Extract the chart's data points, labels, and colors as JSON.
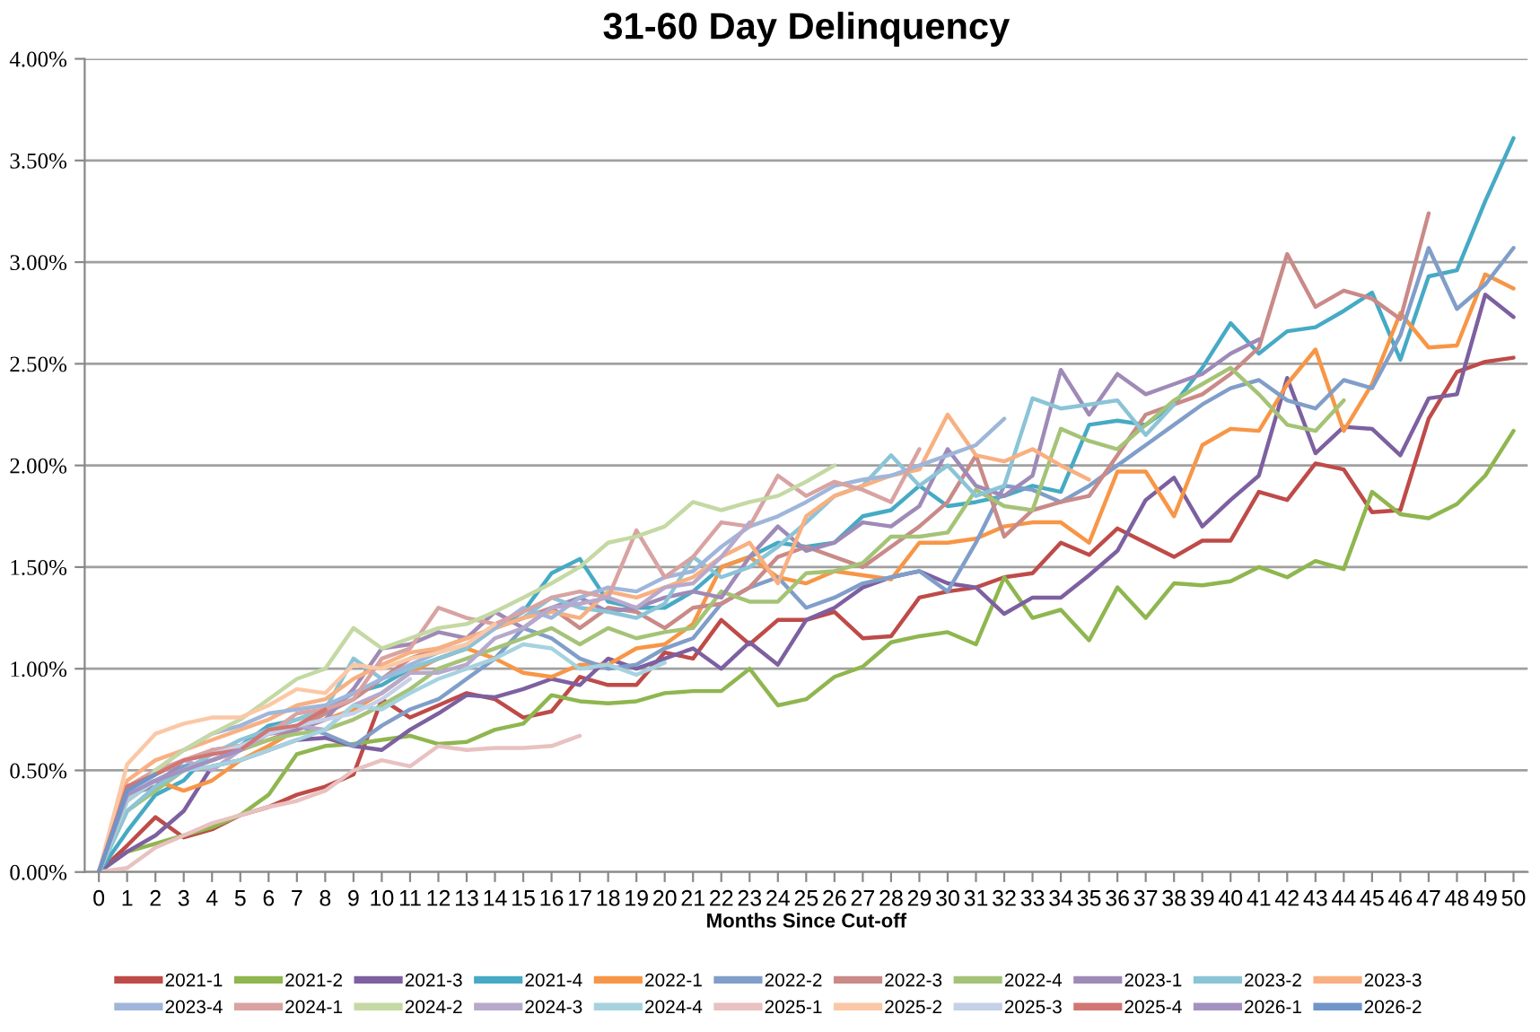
{
  "chart_data": {
    "type": "line",
    "title": "31-60 Day Delinquency",
    "xlabel": "Months Since Cut-off",
    "categories": [
      "0",
      "1",
      "2",
      "3",
      "4",
      "5",
      "6",
      "7",
      "8",
      "9",
      "10",
      "11",
      "12",
      "13",
      "14",
      "15",
      "16",
      "17",
      "18",
      "19",
      "20",
      "21",
      "22",
      "23",
      "24",
      "25",
      "26",
      "27",
      "28",
      "29",
      "30",
      "31",
      "32",
      "33",
      "34",
      "35",
      "36",
      "37",
      "38",
      "39",
      "40",
      "41",
      "42",
      "43",
      "44",
      "45",
      "46",
      "47",
      "48",
      "49",
      "50"
    ],
    "ylim": [
      0,
      4
    ],
    "yticks": [
      {
        "value": 0,
        "label": "0.00%"
      },
      {
        "value": 0.5,
        "label": "0.50%"
      },
      {
        "value": 1,
        "label": "1.00%"
      },
      {
        "value": 1.5,
        "label": "1.50%"
      },
      {
        "value": 2,
        "label": "2.00%"
      },
      {
        "value": 2.5,
        "label": "2.50%"
      },
      {
        "value": 3,
        "label": "3.00%"
      },
      {
        "value": 3.5,
        "label": "3.50%"
      },
      {
        "value": 4,
        "label": "4.00%"
      }
    ],
    "grid": "y",
    "legend": "bottom",
    "marker": "none",
    "line_style": "solid",
    "series": [
      {
        "name": "2021-1",
        "color": "#be4b48",
        "values": [
          0,
          0.13,
          0.27,
          0.17,
          0.21,
          0.28,
          0.32,
          0.38,
          0.42,
          0.48,
          0.85,
          0.76,
          0.82,
          0.88,
          0.85,
          0.76,
          0.79,
          0.96,
          0.92,
          0.92,
          1.08,
          1.05,
          1.24,
          1.12,
          1.24,
          1.24,
          1.28,
          1.15,
          1.16,
          1.35,
          1.38,
          1.4,
          1.45,
          1.47,
          1.62,
          1.56,
          1.69,
          1.62,
          1.55,
          1.63,
          1.63,
          1.87,
          1.83,
          2.01,
          1.98,
          1.77,
          1.78,
          2.23,
          2.46,
          2.51,
          2.53
        ]
      },
      {
        "name": "2021-2",
        "color": "#8fb64f",
        "values": [
          0,
          0.1,
          0.14,
          0.18,
          0.22,
          0.28,
          0.38,
          0.58,
          0.62,
          0.63,
          0.65,
          0.67,
          0.63,
          0.64,
          0.7,
          0.73,
          0.87,
          0.84,
          0.83,
          0.84,
          0.88,
          0.89,
          0.89,
          1.0,
          0.82,
          0.85,
          0.96,
          1.01,
          1.13,
          1.16,
          1.18,
          1.12,
          1.45,
          1.25,
          1.29,
          1.14,
          1.4,
          1.25,
          1.42,
          1.41,
          1.43,
          1.5,
          1.45,
          1.53,
          1.49,
          1.87,
          1.76,
          1.74,
          1.81,
          1.95,
          2.17
        ]
      },
      {
        "name": "2021-3",
        "color": "#7d60a0",
        "values": [
          0,
          0.1,
          0.18,
          0.3,
          0.52,
          0.55,
          0.6,
          0.65,
          0.66,
          0.62,
          0.6,
          0.7,
          0.78,
          0.87,
          0.86,
          0.9,
          0.95,
          0.92,
          1.05,
          1.0,
          1.05,
          1.1,
          1.0,
          1.13,
          1.02,
          1.24,
          1.3,
          1.4,
          1.45,
          1.48,
          1.42,
          1.4,
          1.27,
          1.35,
          1.35,
          1.46,
          1.58,
          1.83,
          1.94,
          1.7,
          1.83,
          1.95,
          2.43,
          2.06,
          2.19,
          2.18,
          2.05,
          2.33,
          2.35,
          2.84,
          2.73
        ]
      },
      {
        "name": "2021-4",
        "color": "#46aac5",
        "values": [
          0,
          0.2,
          0.38,
          0.45,
          0.6,
          0.62,
          0.72,
          0.75,
          0.8,
          0.88,
          0.92,
          1.0,
          1.05,
          1.1,
          1.2,
          1.28,
          1.47,
          1.54,
          1.33,
          1.3,
          1.3,
          1.38,
          1.5,
          1.55,
          1.62,
          1.6,
          1.62,
          1.75,
          1.78,
          1.9,
          1.8,
          1.82,
          1.85,
          1.9,
          1.87,
          2.2,
          2.22,
          2.2,
          2.3,
          2.48,
          2.7,
          2.55,
          2.66,
          2.68,
          2.76,
          2.85,
          2.52,
          2.93,
          2.96,
          3.3,
          3.61
        ]
      },
      {
        "name": "2022-1",
        "color": "#f79646",
        "values": [
          0,
          0.35,
          0.45,
          0.4,
          0.45,
          0.55,
          0.62,
          0.7,
          0.75,
          0.8,
          0.88,
          0.98,
          1.05,
          1.1,
          1.05,
          0.98,
          0.96,
          1.02,
          1.02,
          1.1,
          1.12,
          1.22,
          1.5,
          1.55,
          1.45,
          1.42,
          1.48,
          1.46,
          1.44,
          1.62,
          1.62,
          1.64,
          1.7,
          1.72,
          1.72,
          1.62,
          1.97,
          1.97,
          1.75,
          2.1,
          2.18,
          2.17,
          2.4,
          2.57,
          2.17,
          2.4,
          2.75,
          2.58,
          2.59,
          2.94,
          2.87
        ]
      },
      {
        "name": "2022-2",
        "color": "#809ec9",
        "values": [
          0,
          0.38,
          0.45,
          0.52,
          0.55,
          0.6,
          0.68,
          0.72,
          0.68,
          0.62,
          0.72,
          0.8,
          0.85,
          0.95,
          1.05,
          1.2,
          1.15,
          1.05,
          1.0,
          1.02,
          1.1,
          1.15,
          1.32,
          1.4,
          1.45,
          1.3,
          1.35,
          1.42,
          1.45,
          1.48,
          1.38,
          1.62,
          1.9,
          1.88,
          1.82,
          1.9,
          2.0,
          2.1,
          2.2,
          2.3,
          2.38,
          2.42,
          2.32,
          2.28,
          2.42,
          2.38,
          2.64,
          3.07,
          2.77,
          2.89,
          3.07
        ]
      },
      {
        "name": "2022-3",
        "color": "#c98a88",
        "values": [
          0,
          0.4,
          0.45,
          0.5,
          0.55,
          0.6,
          0.65,
          0.7,
          0.78,
          0.85,
          0.95,
          1.05,
          1.1,
          1.15,
          1.2,
          1.25,
          1.3,
          1.2,
          1.3,
          1.28,
          1.2,
          1.3,
          1.32,
          1.4,
          1.55,
          1.6,
          1.55,
          1.5,
          1.6,
          1.7,
          1.82,
          2.05,
          1.65,
          1.78,
          1.82,
          1.85,
          2.05,
          2.25,
          2.3,
          2.35,
          2.45,
          2.58,
          3.04,
          2.78,
          2.86,
          2.82,
          2.72,
          3.24,
          null,
          null,
          null
        ]
      },
      {
        "name": "2022-4",
        "color": "#a5c377",
        "values": [
          0,
          0.3,
          0.4,
          0.5,
          0.55,
          0.6,
          0.65,
          0.68,
          0.7,
          0.75,
          0.82,
          0.9,
          1.0,
          1.05,
          1.1,
          1.15,
          1.2,
          1.12,
          1.2,
          1.15,
          1.18,
          1.2,
          1.38,
          1.33,
          1.33,
          1.47,
          1.48,
          1.52,
          1.65,
          1.65,
          1.67,
          1.88,
          1.8,
          1.78,
          2.18,
          2.12,
          2.08,
          2.2,
          2.32,
          2.4,
          2.48,
          2.35,
          2.2,
          2.17,
          2.32,
          null,
          null,
          null,
          null,
          null,
          null
        ]
      },
      {
        "name": "2023-1",
        "color": "#9f8ab7",
        "values": [
          0,
          0.38,
          0.42,
          0.55,
          0.58,
          0.62,
          0.68,
          0.7,
          0.75,
          0.9,
          1.1,
          1.12,
          1.18,
          1.15,
          1.28,
          1.2,
          1.3,
          1.35,
          1.28,
          1.3,
          1.35,
          1.38,
          1.35,
          1.55,
          1.7,
          1.58,
          1.62,
          1.72,
          1.7,
          1.8,
          2.08,
          1.9,
          1.85,
          1.95,
          2.47,
          2.25,
          2.45,
          2.35,
          2.4,
          2.45,
          2.55,
          2.62,
          null,
          null,
          null,
          null,
          null,
          null,
          null,
          null,
          null
        ]
      },
      {
        "name": "2023-2",
        "color": "#8bc4d6",
        "values": [
          0,
          0.3,
          0.42,
          0.5,
          0.58,
          0.65,
          0.7,
          0.75,
          0.8,
          1.05,
          0.95,
          1.0,
          1.05,
          1.1,
          1.2,
          1.25,
          1.35,
          1.3,
          1.28,
          1.25,
          1.32,
          1.55,
          1.45,
          1.5,
          1.6,
          1.72,
          1.85,
          1.9,
          2.05,
          1.9,
          2.0,
          1.85,
          1.9,
          2.33,
          2.28,
          2.3,
          2.32,
          2.15,
          2.3,
          null,
          null,
          null,
          null,
          null,
          null,
          null,
          null,
          null,
          null,
          null,
          null
        ]
      },
      {
        "name": "2023-3",
        "color": "#f8b081",
        "values": [
          0,
          0.45,
          0.55,
          0.6,
          0.65,
          0.7,
          0.75,
          0.82,
          0.85,
          0.95,
          1.02,
          1.08,
          1.1,
          1.15,
          1.2,
          1.25,
          1.28,
          1.25,
          1.38,
          1.35,
          1.4,
          1.45,
          1.55,
          1.62,
          1.42,
          1.75,
          1.85,
          1.9,
          1.95,
          1.98,
          2.25,
          2.05,
          2.02,
          2.08,
          2.0,
          1.93,
          null,
          null,
          null,
          null,
          null,
          null,
          null,
          null,
          null,
          null,
          null,
          null,
          null,
          null,
          null
        ]
      },
      {
        "name": "2023-4",
        "color": "#9fb6da",
        "values": [
          0,
          0.4,
          0.5,
          0.6,
          0.68,
          0.72,
          0.78,
          0.8,
          0.82,
          0.88,
          0.95,
          1.02,
          1.08,
          1.12,
          1.2,
          1.3,
          1.25,
          1.35,
          1.4,
          1.38,
          1.45,
          1.48,
          1.6,
          1.7,
          1.75,
          1.82,
          1.9,
          1.93,
          1.95,
          2.0,
          2.05,
          2.1,
          2.23,
          null,
          null,
          null,
          null,
          null,
          null,
          null,
          null,
          null,
          null,
          null,
          null,
          null,
          null,
          null,
          null,
          null,
          null
        ]
      },
      {
        "name": "2024-1",
        "color": "#d8a3a2",
        "values": [
          0,
          0.42,
          0.5,
          0.55,
          0.6,
          0.62,
          0.68,
          0.78,
          0.8,
          0.85,
          1.05,
          1.1,
          1.3,
          1.25,
          1.22,
          1.28,
          1.35,
          1.38,
          1.35,
          1.68,
          1.45,
          1.55,
          1.72,
          1.7,
          1.95,
          1.85,
          1.92,
          1.88,
          1.82,
          2.08,
          null,
          null,
          null,
          null,
          null,
          null,
          null,
          null,
          null,
          null,
          null,
          null,
          null,
          null,
          null,
          null,
          null,
          null,
          null,
          null,
          null
        ]
      },
      {
        "name": "2024-2",
        "color": "#c4d9a3",
        "values": [
          0,
          0.35,
          0.5,
          0.6,
          0.68,
          0.75,
          0.85,
          0.95,
          1.0,
          1.2,
          1.1,
          1.15,
          1.2,
          1.22,
          1.28,
          1.35,
          1.42,
          1.5,
          1.62,
          1.65,
          1.7,
          1.82,
          1.78,
          1.82,
          1.85,
          1.92,
          2.0,
          null,
          null,
          null,
          null,
          null,
          null,
          null,
          null,
          null,
          null,
          null,
          null,
          null,
          null,
          null,
          null,
          null,
          null,
          null,
          null,
          null,
          null,
          null,
          null
        ]
      },
      {
        "name": "2024-3",
        "color": "#b7a9cc",
        "values": [
          0,
          0.4,
          0.48,
          0.55,
          0.5,
          0.6,
          0.68,
          0.72,
          0.7,
          0.82,
          0.88,
          0.98,
          0.98,
          1.02,
          1.15,
          1.2,
          1.3,
          1.32,
          1.35,
          1.3,
          1.4,
          1.42,
          1.55,
          1.72,
          null,
          null,
          null,
          null,
          null,
          null,
          null,
          null,
          null,
          null,
          null,
          null,
          null,
          null,
          null,
          null,
          null,
          null,
          null,
          null,
          null,
          null,
          null,
          null,
          null,
          null,
          null
        ]
      },
      {
        "name": "2024-4",
        "color": "#a6d2e0",
        "values": [
          0,
          0.35,
          0.45,
          0.5,
          0.52,
          0.55,
          0.6,
          0.65,
          0.7,
          0.82,
          0.8,
          0.88,
          0.95,
          1.0,
          1.05,
          1.12,
          1.1,
          1.0,
          1.02,
          0.97,
          1.03,
          null,
          null,
          null,
          null,
          null,
          null,
          null,
          null,
          null,
          null,
          null,
          null,
          null,
          null,
          null,
          null,
          null,
          null,
          null,
          null,
          null,
          null,
          null,
          null,
          null,
          null,
          null,
          null,
          null,
          null
        ]
      },
      {
        "name": "2025-1",
        "color": "#e8c1c0",
        "values": [
          0,
          0.02,
          0.12,
          0.18,
          0.24,
          0.28,
          0.32,
          0.35,
          0.4,
          0.5,
          0.55,
          0.52,
          0.62,
          0.6,
          0.61,
          0.61,
          0.62,
          0.67,
          null,
          null,
          null,
          null,
          null,
          null,
          null,
          null,
          null,
          null,
          null,
          null,
          null,
          null,
          null,
          null,
          null,
          null,
          null,
          null,
          null,
          null,
          null,
          null,
          null,
          null,
          null,
          null,
          null,
          null,
          null,
          null,
          null
        ]
      },
      {
        "name": "2025-2",
        "color": "#fbc8a6",
        "values": [
          0,
          0.53,
          0.68,
          0.73,
          0.76,
          0.76,
          0.82,
          0.9,
          0.88,
          1.02,
          1.0,
          1.05,
          1.08,
          1.12,
          1.22,
          null,
          null,
          null,
          null,
          null,
          null,
          null,
          null,
          null,
          null,
          null,
          null,
          null,
          null,
          null,
          null,
          null,
          null,
          null,
          null,
          null,
          null,
          null,
          null,
          null,
          null,
          null,
          null,
          null,
          null,
          null,
          null,
          null,
          null,
          null,
          null
        ]
      },
      {
        "name": "2025-3",
        "color": "#c4d1e7",
        "values": [
          0,
          0.38,
          0.48,
          0.55,
          0.58,
          0.62,
          0.68,
          0.72,
          0.75,
          0.78,
          0.85,
          0.95,
          null,
          null,
          null,
          null,
          null,
          null,
          null,
          null,
          null,
          null,
          null,
          null,
          null,
          null,
          null,
          null,
          null,
          null,
          null,
          null,
          null,
          null,
          null,
          null,
          null,
          null,
          null,
          null,
          null,
          null,
          null,
          null,
          null,
          null,
          null,
          null,
          null,
          null,
          null
        ]
      },
      {
        "name": "2025-4",
        "color": "#d27673",
        "values": [
          0,
          0.42,
          0.48,
          0.55,
          0.58,
          0.6,
          0.7,
          0.72,
          0.8,
          null,
          null,
          null,
          null,
          null,
          null,
          null,
          null,
          null,
          null,
          null,
          null,
          null,
          null,
          null,
          null,
          null,
          null,
          null,
          null,
          null,
          null,
          null,
          null,
          null,
          null,
          null,
          null,
          null,
          null,
          null,
          null,
          null,
          null,
          null,
          null,
          null,
          null,
          null,
          null,
          null,
          null
        ]
      },
      {
        "name": "2026-1",
        "color": "#a491c2",
        "values": [
          0,
          0.38,
          0.45,
          0.5,
          0.55,
          0.6,
          null,
          null,
          null,
          null,
          null,
          null,
          null,
          null,
          null,
          null,
          null,
          null,
          null,
          null,
          null,
          null,
          null,
          null,
          null,
          null,
          null,
          null,
          null,
          null,
          null,
          null,
          null,
          null,
          null,
          null,
          null,
          null,
          null,
          null,
          null,
          null,
          null,
          null,
          null,
          null,
          null,
          null,
          null,
          null,
          null
        ]
      },
      {
        "name": "2026-2",
        "color": "#6f95c9",
        "values": [
          0,
          0.4,
          0.48,
          null,
          null,
          null,
          null,
          null,
          null,
          null,
          null,
          null,
          null,
          null,
          null,
          null,
          null,
          null,
          null,
          null,
          null,
          null,
          null,
          null,
          null,
          null,
          null,
          null,
          null,
          null,
          null,
          null,
          null,
          null,
          null,
          null,
          null,
          null,
          null,
          null,
          null,
          null,
          null,
          null,
          null,
          null,
          null,
          null,
          null,
          null,
          null
        ]
      }
    ]
  }
}
